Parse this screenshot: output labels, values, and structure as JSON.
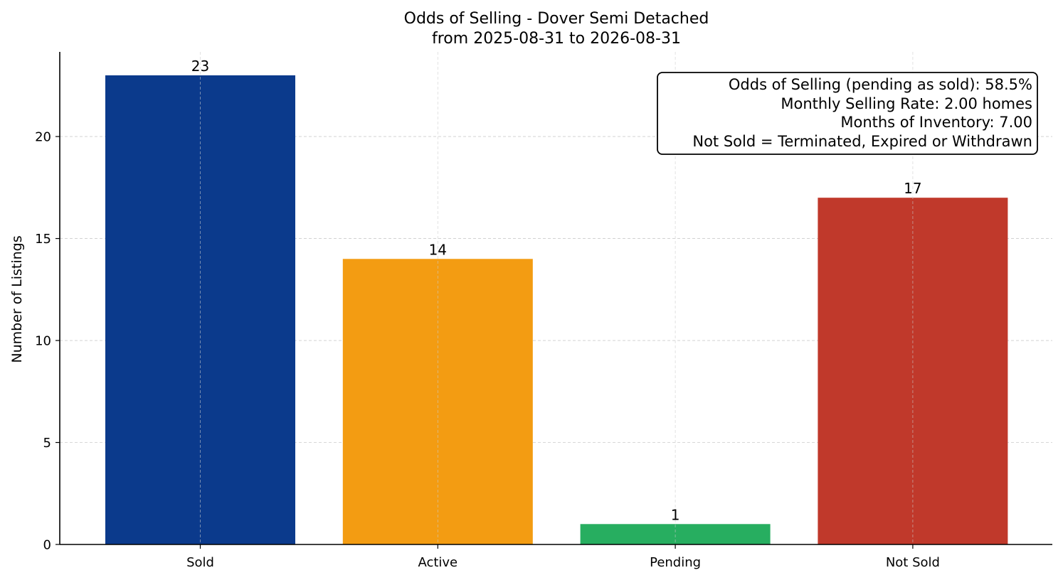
{
  "chart_data": {
    "type": "bar",
    "title": "Odds of Selling - Dover Semi Detached",
    "subtitle": "from 2025-08-31 to 2026-08-31",
    "xlabel": "",
    "ylabel": "Number of Listings",
    "categories": [
      "Sold",
      "Active",
      "Pending",
      "Not Sold"
    ],
    "values": [
      23,
      14,
      1,
      17
    ],
    "value_labels": [
      "23",
      "14",
      "1",
      "17"
    ],
    "colors": [
      "#0b3a8c",
      "#f39c12",
      "#27ae60",
      "#c0392b"
    ],
    "ylim": [
      0,
      24.15
    ],
    "yticks": [
      0,
      5,
      10,
      15,
      20
    ],
    "ytick_labels": [
      "0",
      "5",
      "10",
      "15",
      "20"
    ],
    "grid": true,
    "annotation_lines": [
      "Odds of Selling (pending as sold): 58.5%",
      "Monthly Selling Rate: 2.00 homes",
      "Months of Inventory: 7.00",
      "Not Sold = Terminated, Expired or Withdrawn"
    ],
    "annotation_placement": "top-right"
  }
}
